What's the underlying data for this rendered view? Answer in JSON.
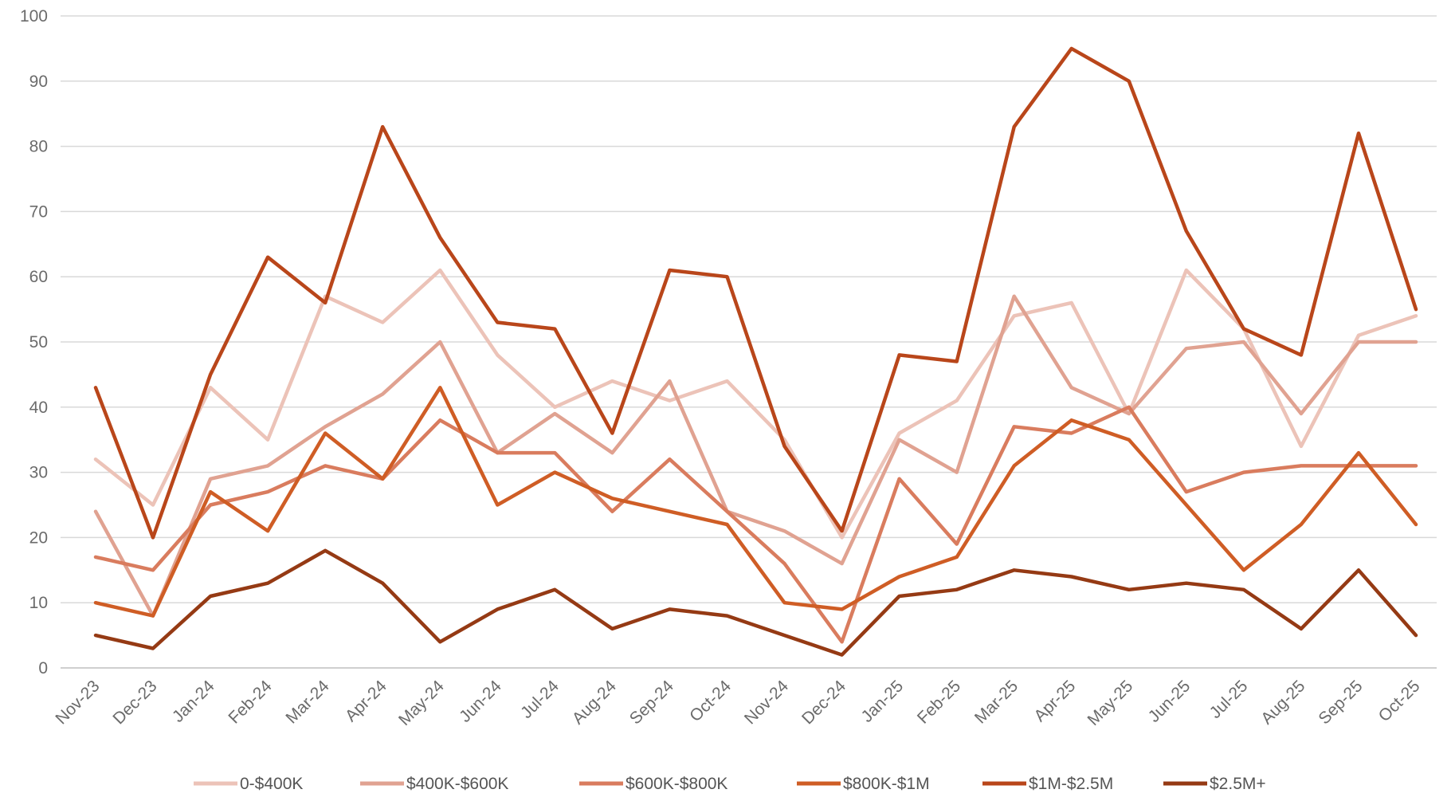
{
  "chart_data": {
    "type": "line",
    "title": "",
    "xlabel": "",
    "ylabel": "",
    "ylim": [
      0,
      100
    ],
    "yticks": [
      0,
      10,
      20,
      30,
      40,
      50,
      60,
      70,
      80,
      90,
      100
    ],
    "grid": true,
    "legend_position": "bottom",
    "categories": [
      "Nov-23",
      "Dec-23",
      "Jan-24",
      "Feb-24",
      "Mar-24",
      "Apr-24",
      "May-24",
      "Jun-24",
      "Jul-24",
      "Aug-24",
      "Sep-24",
      "Oct-24",
      "Nov-24",
      "Dec-24",
      "Jan-25",
      "Feb-25",
      "Mar-25",
      "Apr-25",
      "May-25",
      "Jun-25",
      "Jul-25",
      "Aug-25",
      "Sep-25",
      "Oct-25"
    ],
    "series": [
      {
        "name": "0-$400K",
        "color": "#ecc3b8",
        "values": [
          32,
          25,
          43,
          35,
          57,
          53,
          61,
          48,
          40,
          44,
          41,
          44,
          35,
          20,
          36,
          41,
          54,
          56,
          39,
          61,
          52,
          34,
          51,
          54
        ]
      },
      {
        "name": "$400K-$600K",
        "color": "#e0a291",
        "values": [
          24,
          8,
          29,
          31,
          37,
          42,
          50,
          33,
          39,
          33,
          44,
          24,
          21,
          16,
          35,
          30,
          57,
          43,
          39,
          49,
          50,
          39,
          50,
          50
        ]
      },
      {
        "name": "$600K-$800K",
        "color": "#d97c5e",
        "values": [
          17,
          15,
          25,
          27,
          31,
          29,
          38,
          33,
          33,
          24,
          32,
          24,
          16,
          4,
          29,
          19,
          37,
          36,
          40,
          27,
          30,
          31,
          31,
          31
        ]
      },
      {
        "name": "$800K-$1M",
        "color": "#cf5d25",
        "values": [
          10,
          8,
          27,
          21,
          36,
          29,
          43,
          25,
          30,
          26,
          24,
          22,
          10,
          9,
          14,
          17,
          31,
          38,
          35,
          25,
          15,
          22,
          33,
          22
        ]
      },
      {
        "name": "$1M-$2.5M",
        "color": "#b9461a",
        "values": [
          43,
          20,
          45,
          63,
          56,
          83,
          66,
          53,
          52,
          36,
          61,
          60,
          34,
          21,
          48,
          47,
          83,
          95,
          90,
          67,
          52,
          48,
          82,
          55
        ]
      },
      {
        "name": "$2.5M+",
        "color": "#953a14",
        "values": [
          5,
          3,
          11,
          13,
          18,
          13,
          4,
          9,
          12,
          6,
          9,
          8,
          5,
          2,
          11,
          12,
          15,
          14,
          12,
          13,
          12,
          6,
          15,
          5
        ]
      }
    ]
  }
}
